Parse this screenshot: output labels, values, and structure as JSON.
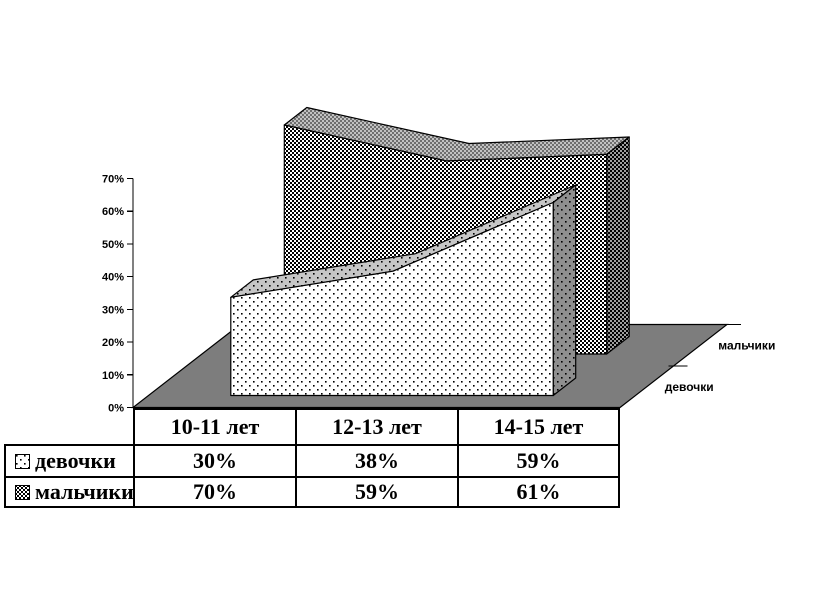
{
  "chart_data": {
    "type": "area",
    "projection": "3d",
    "categories": [
      "10-11 лет",
      "12-13 лет",
      "14-15 лет"
    ],
    "series": [
      {
        "name": "девочки",
        "values": [
          30,
          38,
          59
        ],
        "pattern": "dots"
      },
      {
        "name": "мальчики",
        "values": [
          70,
          59,
          61
        ],
        "pattern": "checker"
      }
    ],
    "title": "",
    "xlabel": "",
    "ylabel": "",
    "ylim": [
      0,
      70
    ],
    "ytick_step": 10,
    "ytick_labels": [
      "0%",
      "10%",
      "20%",
      "30%",
      "40%",
      "50%",
      "60%",
      "70%"
    ],
    "grid": false,
    "legend_position": "table-left",
    "colors": {
      "background": "#ffffff",
      "outline": "#000000",
      "floor": "#7d7d7d",
      "pattern_ink": "#000000",
      "girls_front_bg": "#ffffff",
      "girls_top_bg": "#c6c6c6",
      "girls_side_bg": "#8f8f8f",
      "boys_front_bg": "#ffffff",
      "boys_top_bg": "#c2c2c2",
      "boys_top_square": "#6e6e6e",
      "boys_side_bg": "#9e9e9e"
    }
  },
  "table": {
    "columns": [
      "10-11 лет",
      "12-13 лет",
      "14-15 лет"
    ],
    "rows": [
      {
        "label": "девочки",
        "values": [
          "30%",
          "38%",
          "59%"
        ]
      },
      {
        "label": "мальчики",
        "values": [
          "70%",
          "59%",
          "61%"
        ]
      }
    ]
  }
}
